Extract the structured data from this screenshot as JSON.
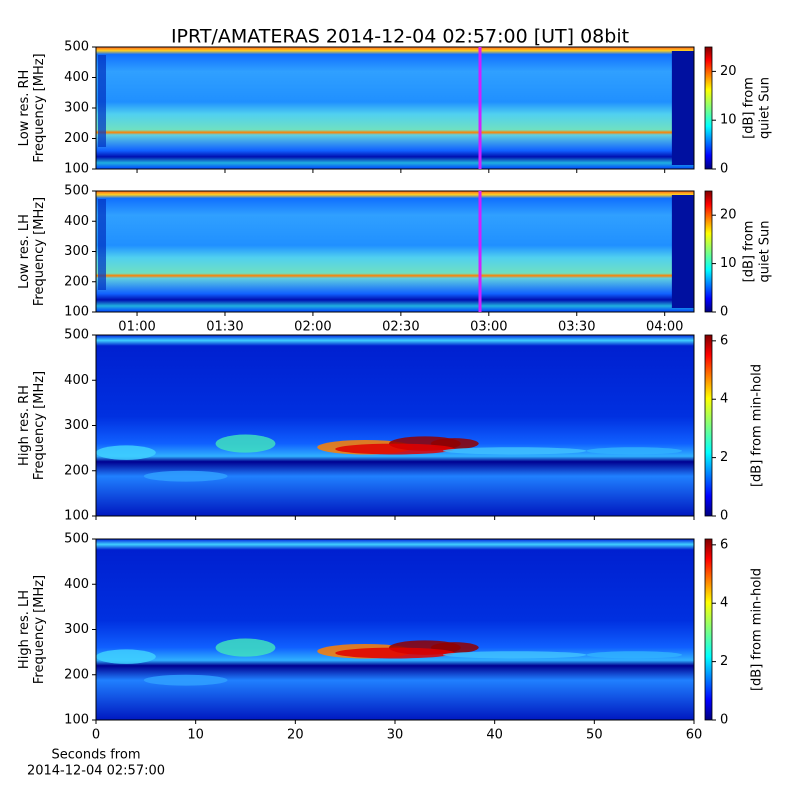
{
  "title": "IPRT/AMATERAS 2014-12-04 02:57:00 [UT]   08bit",
  "chart_data": [
    {
      "type": "heatmap",
      "ylabel": [
        "Low res. RH",
        "Frequency [MHz]"
      ],
      "ylim": [
        100,
        500
      ],
      "yticks": [
        100,
        200,
        300,
        400,
        500
      ],
      "xlim": [
        "00:46",
        "04:10"
      ],
      "cursor": "02:57",
      "cursor_color": "#d020ff",
      "colorbar": {
        "label": [
          "[dB] from",
          "quiet Sun"
        ],
        "lim": [
          0,
          25
        ],
        "ticks": [
          0,
          10,
          20
        ]
      }
    },
    {
      "type": "heatmap",
      "ylabel": [
        "Low res. LH",
        "Frequency [MHz]"
      ],
      "ylim": [
        100,
        500
      ],
      "yticks": [
        100,
        200,
        300,
        400,
        500
      ],
      "xlim": [
        "00:46",
        "04:10"
      ],
      "xticks": [
        "01:00",
        "01:30",
        "02:00",
        "02:30",
        "03:00",
        "03:30",
        "04:00"
      ],
      "cursor": "02:57",
      "cursor_color": "#d020ff",
      "colorbar": {
        "label": [
          "[dB] from",
          "quiet Sun"
        ],
        "lim": [
          0,
          25
        ],
        "ticks": [
          0,
          10,
          20
        ]
      }
    },
    {
      "type": "heatmap",
      "ylabel": [
        "High res. RH",
        "Frequency [MHz]"
      ],
      "ylim": [
        100,
        500
      ],
      "yticks": [
        100,
        200,
        300,
        400,
        500
      ],
      "xlim": [
        0,
        60
      ],
      "colorbar": {
        "label": [
          "[dB] from min-hold"
        ],
        "lim": [
          0,
          6.2
        ],
        "ticks": [
          0,
          2,
          4,
          6
        ]
      }
    },
    {
      "type": "heatmap",
      "ylabel": [
        "High res. LH",
        "Frequency [MHz]"
      ],
      "ylim": [
        100,
        500
      ],
      "yticks": [
        100,
        200,
        300,
        400,
        500
      ],
      "xlim": [
        0,
        60
      ],
      "xticks": [
        0,
        10,
        20,
        30,
        40,
        50,
        60
      ],
      "xlabel": [
        "Seconds from",
        "2014-12-04 02:57:00"
      ],
      "colorbar": {
        "label": [
          "[dB] from min-hold"
        ],
        "lim": [
          0,
          6.2
        ],
        "ticks": [
          0,
          2,
          4,
          6
        ]
      }
    }
  ]
}
